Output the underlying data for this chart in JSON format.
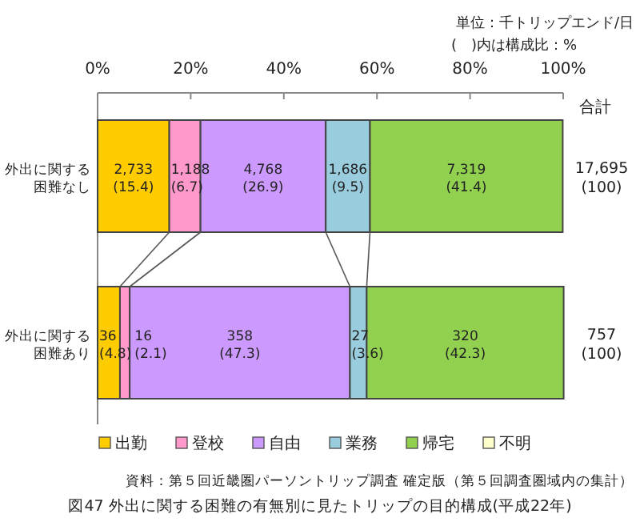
{
  "chart_data": {
    "type": "bar",
    "orientation": "horizontal",
    "stacked": true,
    "title": "図47 外出に関する困難の有無別に見たトリップの目的構成(平成22年)",
    "categories": [
      "外出に関する困難なし",
      "外出に関する困難あり"
    ],
    "series": [
      {
        "name": "出勤",
        "color": "#ffcc00",
        "values": [
          15.4,
          4.8
        ],
        "value_labels": [
          "2,733\n(15.4)",
          "36\n(4.8)"
        ]
      },
      {
        "name": "登校",
        "color": "#ff99cc",
        "values": [
          6.7,
          2.1
        ],
        "value_labels": [
          "1,188\n(6.7)",
          "16\n(2.1)"
        ]
      },
      {
        "name": "自由",
        "color": "#cc99ff",
        "values": [
          26.9,
          47.3
        ],
        "value_labels": [
          "4,768\n(26.9)",
          "358\n(47.3)"
        ]
      },
      {
        "name": "業務",
        "color": "#99ccdd",
        "values": [
          9.5,
          3.6
        ],
        "value_labels": [
          "1,686\n(9.5)",
          "27\n(3.6)"
        ]
      },
      {
        "name": "帰宅",
        "color": "#92d050",
        "values": [
          41.4,
          42.3
        ],
        "value_labels": [
          "7,319\n(41.4)",
          "320\n(42.3)"
        ]
      },
      {
        "name": "不明",
        "color": "#ffffcc",
        "values": [
          0,
          0
        ]
      }
    ],
    "totals": [
      "17,695\n(100)",
      "757\n(100)"
    ],
    "xlim": [
      0,
      100
    ],
    "xticks": [
      {
        "value": 0,
        "label": "0%"
      },
      {
        "value": 20,
        "label": "20%"
      },
      {
        "value": 40,
        "label": "40%"
      },
      {
        "value": 60,
        "label": "60%"
      },
      {
        "value": 80,
        "label": "80%"
      },
      {
        "value": 100,
        "label": "100%"
      }
    ],
    "legend": "bottom",
    "annotations": [
      "単位：千トリップエンド/日",
      "(　)内は構成比：%",
      "合計",
      "資料：第５回近畿圏パーソントリップ調査 確定版（第５回調査圏域内の集計）"
    ]
  }
}
